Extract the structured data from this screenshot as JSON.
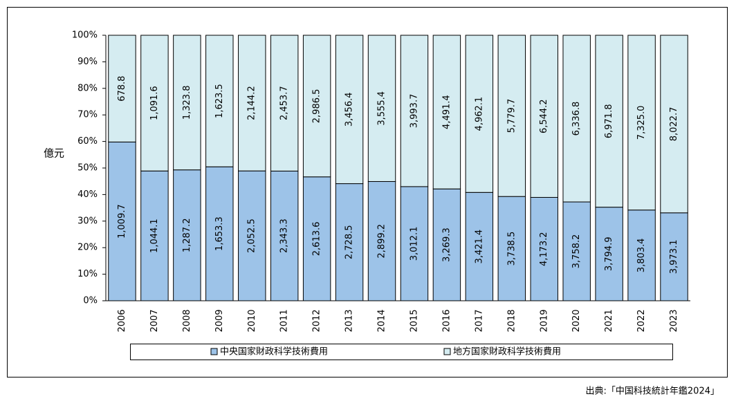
{
  "chart_data": {
    "type": "percent-stacked-bar",
    "y_label": "億元",
    "source": "出典:「中国科技統計年鑑2024」",
    "categories": [
      "2006",
      "2007",
      "2008",
      "2009",
      "2010",
      "2011",
      "2012",
      "2013",
      "2014",
      "2015",
      "2016",
      "2017",
      "2018",
      "2019",
      "2020",
      "2021",
      "2022",
      "2023"
    ],
    "series": [
      {
        "name": "中央国家財政科学技術費用",
        "color": "#9dc3e8",
        "values": [
          1009.7,
          1044.1,
          1287.2,
          1653.3,
          2052.5,
          2343.3,
          2613.6,
          2728.5,
          2899.2,
          3012.1,
          3269.3,
          3421.4,
          3738.5,
          4173.2,
          3758.2,
          3794.9,
          3803.4,
          3973.1
        ],
        "value_labels": [
          "1,009.7",
          "1,044.1",
          "1,287.2",
          "1,653.3",
          "2,052.5",
          "2,343.3",
          "2,613.6",
          "2,728.5",
          "2,899.2",
          "3,012.1",
          "3,269.3",
          "3,421.4",
          "3,738.5",
          "4,173.2",
          "3,758.2",
          "3,794.9",
          "3,803.4",
          "3,973.1"
        ]
      },
      {
        "name": "地方国家財政科学技術費用",
        "color": "#d5ecf1",
        "values": [
          678.8,
          1091.6,
          1323.8,
          1623.5,
          2144.2,
          2453.7,
          2986.5,
          3456.4,
          3555.4,
          3993.7,
          4491.4,
          4962.1,
          5779.7,
          6544.2,
          6336.8,
          6971.8,
          7325.0,
          8022.7
        ],
        "value_labels": [
          "678.8",
          "1,091.6",
          "1,323.8",
          "1,623.5",
          "2,144.2",
          "2,453.7",
          "2,986.5",
          "3,456.4",
          "3,555.4",
          "3,993.7",
          "4,491.4",
          "4,962.1",
          "5,779.7",
          "6,544.2",
          "6,336.8",
          "6,971.8",
          "7,325.0",
          "8,022.7"
        ]
      }
    ],
    "ylim": [
      0,
      100
    ],
    "yticks": [
      {
        "value": 0,
        "label": "0%"
      },
      {
        "value": 10,
        "label": "10%"
      },
      {
        "value": 20,
        "label": "20%"
      },
      {
        "value": 30,
        "label": "30%"
      },
      {
        "value": 40,
        "label": "40%"
      },
      {
        "value": 50,
        "label": "50%"
      },
      {
        "value": 60,
        "label": "60%"
      },
      {
        "value": 70,
        "label": "70%"
      },
      {
        "value": 80,
        "label": "80%"
      },
      {
        "value": 90,
        "label": "90%"
      },
      {
        "value": 100,
        "label": "100%"
      }
    ],
    "grid": false,
    "legend": "bottom"
  }
}
